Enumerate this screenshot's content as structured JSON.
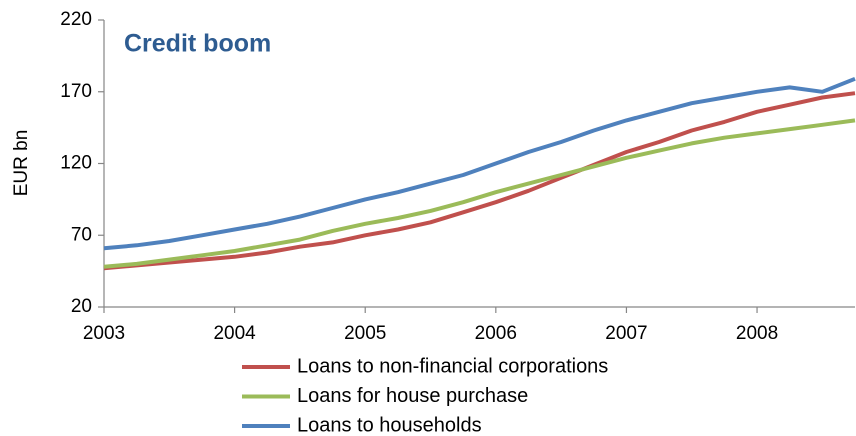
{
  "chart_data": {
    "type": "line",
    "title": "Credit boom",
    "y_label": "EUR bn",
    "x": [
      2003,
      2003.25,
      2003.5,
      2003.75,
      2004,
      2004.25,
      2004.5,
      2004.75,
      2005,
      2005.25,
      2005.5,
      2005.75,
      2006,
      2006.25,
      2006.5,
      2006.75,
      2007,
      2007.25,
      2007.5,
      2007.75,
      2008,
      2008.25,
      2008.5,
      2008.75
    ],
    "series": [
      {
        "name": "Loans to non-financial corporations",
        "color": "#c0504d",
        "values": [
          47,
          49,
          51,
          53,
          55,
          58,
          62,
          65,
          70,
          74,
          79,
          86,
          93,
          101,
          110,
          119,
          128,
          135,
          143,
          149,
          156,
          161,
          166,
          169
        ]
      },
      {
        "name": "Loans for house purchase",
        "color": "#9bbb59",
        "values": [
          48,
          50,
          53,
          56,
          59,
          63,
          67,
          73,
          78,
          82,
          87,
          93,
          100,
          106,
          112,
          118,
          124,
          129,
          134,
          138,
          141,
          144,
          147,
          150
        ]
      },
      {
        "name": "Loans to households",
        "color": "#4f81bd",
        "values": [
          61,
          63,
          66,
          70,
          74,
          78,
          83,
          89,
          95,
          100,
          106,
          112,
          120,
          128,
          135,
          143,
          150,
          156,
          162,
          166,
          170,
          173,
          170,
          179
        ]
      }
    ],
    "xlim": [
      2003,
      2008.75
    ],
    "xticks": [
      2003,
      2004,
      2005,
      2006,
      2007,
      2008
    ],
    "ylim": [
      20,
      220
    ],
    "yticks": [
      20,
      70,
      120,
      170,
      220
    ],
    "grid": false,
    "legend": "bottom"
  }
}
